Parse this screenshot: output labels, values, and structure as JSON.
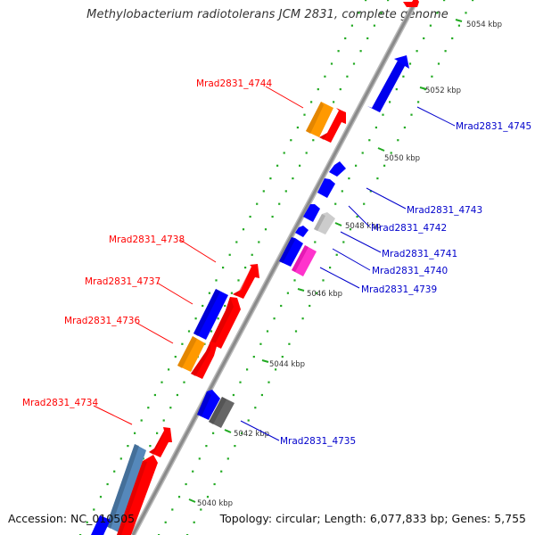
{
  "title": "Methylobacterium radiotolerans JCM 2831, complete genome",
  "accession": "Accession: NC_010505",
  "topology": "Topology: circular; Length: 6,077,833 bp; Genes: 5,755",
  "colors": {
    "forward_label": "#ff0000",
    "reverse_label": "#0000cc",
    "red": "#ff0000",
    "blue": "#0000ff",
    "orange": "#ff9900",
    "magenta": "#ff33cc",
    "lightgray": "#cccccc",
    "darkgray": "#666666",
    "steelblue": "#5588bb",
    "backbone": "#999999",
    "dots": "#22aa22"
  },
  "scale_labels": [
    "5054 kbp",
    "5052 kbp",
    "5050 kbp",
    "5048 kbp",
    "5046 kbp",
    "5044 kbp",
    "5042 kbp",
    "5040 kbp"
  ],
  "forward_labels": [
    "Mrad2831_4744",
    "Mrad2831_4738",
    "Mrad2831_4737",
    "Mrad2831_4736",
    "Mrad2831_4734"
  ],
  "reverse_labels": [
    "Mrad2831_4745",
    "Mrad2831_4743",
    "Mrad2831_4742",
    "Mrad2831_4741",
    "Mrad2831_4740",
    "Mrad2831_4739",
    "Mrad2831_4735"
  ]
}
